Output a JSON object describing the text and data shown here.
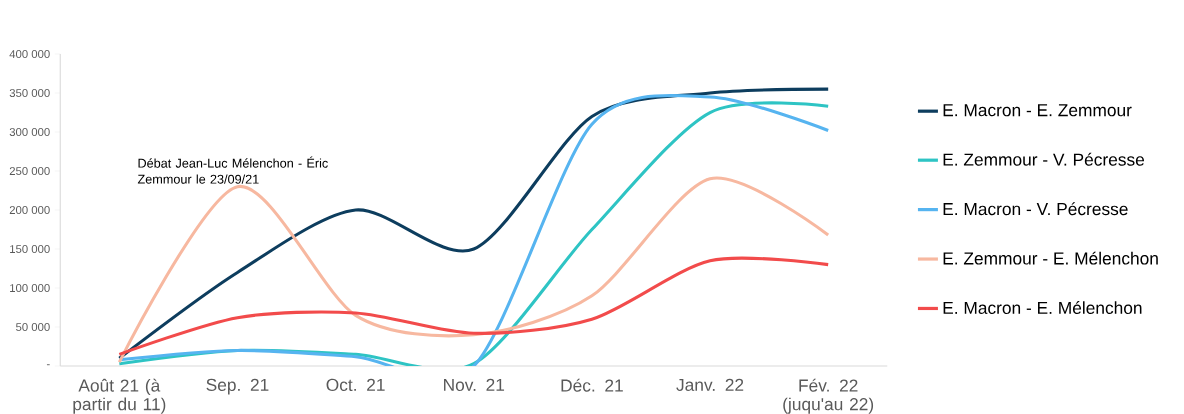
{
  "chart_data": {
    "type": "line",
    "categories": [
      "Août 21 (à partir du 11)",
      "Sep. 21",
      "Oct. 21",
      "Nov. 21",
      "Déc. 21",
      "Janv. 22",
      "Fév. 22 (juqu'au 22)"
    ],
    "series": [
      {
        "name": "E. Macron - E. Zemmour",
        "color": "#0d3d5e",
        "values": [
          10000,
          120000,
          200000,
          150000,
          320000,
          350000,
          355000
        ]
      },
      {
        "name": "E. Zemmour - V. Pécresse",
        "color": "#2ec4c4",
        "values": [
          3000,
          20000,
          15000,
          3000,
          175000,
          325000,
          333000
        ]
      },
      {
        "name": "E. Macron - V. Pécresse",
        "color": "#56b4f0",
        "values": [
          8000,
          20000,
          12000,
          0,
          310000,
          345000,
          302000
        ]
      },
      {
        "name": "E. Zemmour - E. Mélenchon",
        "color": "#f7b8a0",
        "values": [
          5000,
          230000,
          65000,
          40000,
          90000,
          240000,
          168000
        ]
      },
      {
        "name": "E. Macron - E. Mélenchon",
        "color": "#f24b4b",
        "values": [
          15000,
          62000,
          68000,
          42000,
          60000,
          135000,
          130000
        ]
      }
    ],
    "ylim": [
      0,
      400000
    ],
    "yticks": [
      {
        "value": 0,
        "label": "-"
      },
      {
        "value": 50000,
        "label": "50 000"
      },
      {
        "value": 100000,
        "label": "100 000"
      },
      {
        "value": 150000,
        "label": "150 000"
      },
      {
        "value": 200000,
        "label": "200 000"
      },
      {
        "value": 250000,
        "label": "250 000"
      },
      {
        "value": 300000,
        "label": "300 000"
      },
      {
        "value": 350000,
        "label": "350 000"
      },
      {
        "value": 400000,
        "label": "400 000"
      }
    ],
    "annotations": [
      {
        "text": "Débat Jean-Luc Mélenchon - Éric Zemmour le 23/09/21",
        "x": "Sep. 21",
        "y": 230000
      }
    ],
    "legend": "right",
    "grid": false,
    "marker": "none",
    "line_style": "solid"
  }
}
